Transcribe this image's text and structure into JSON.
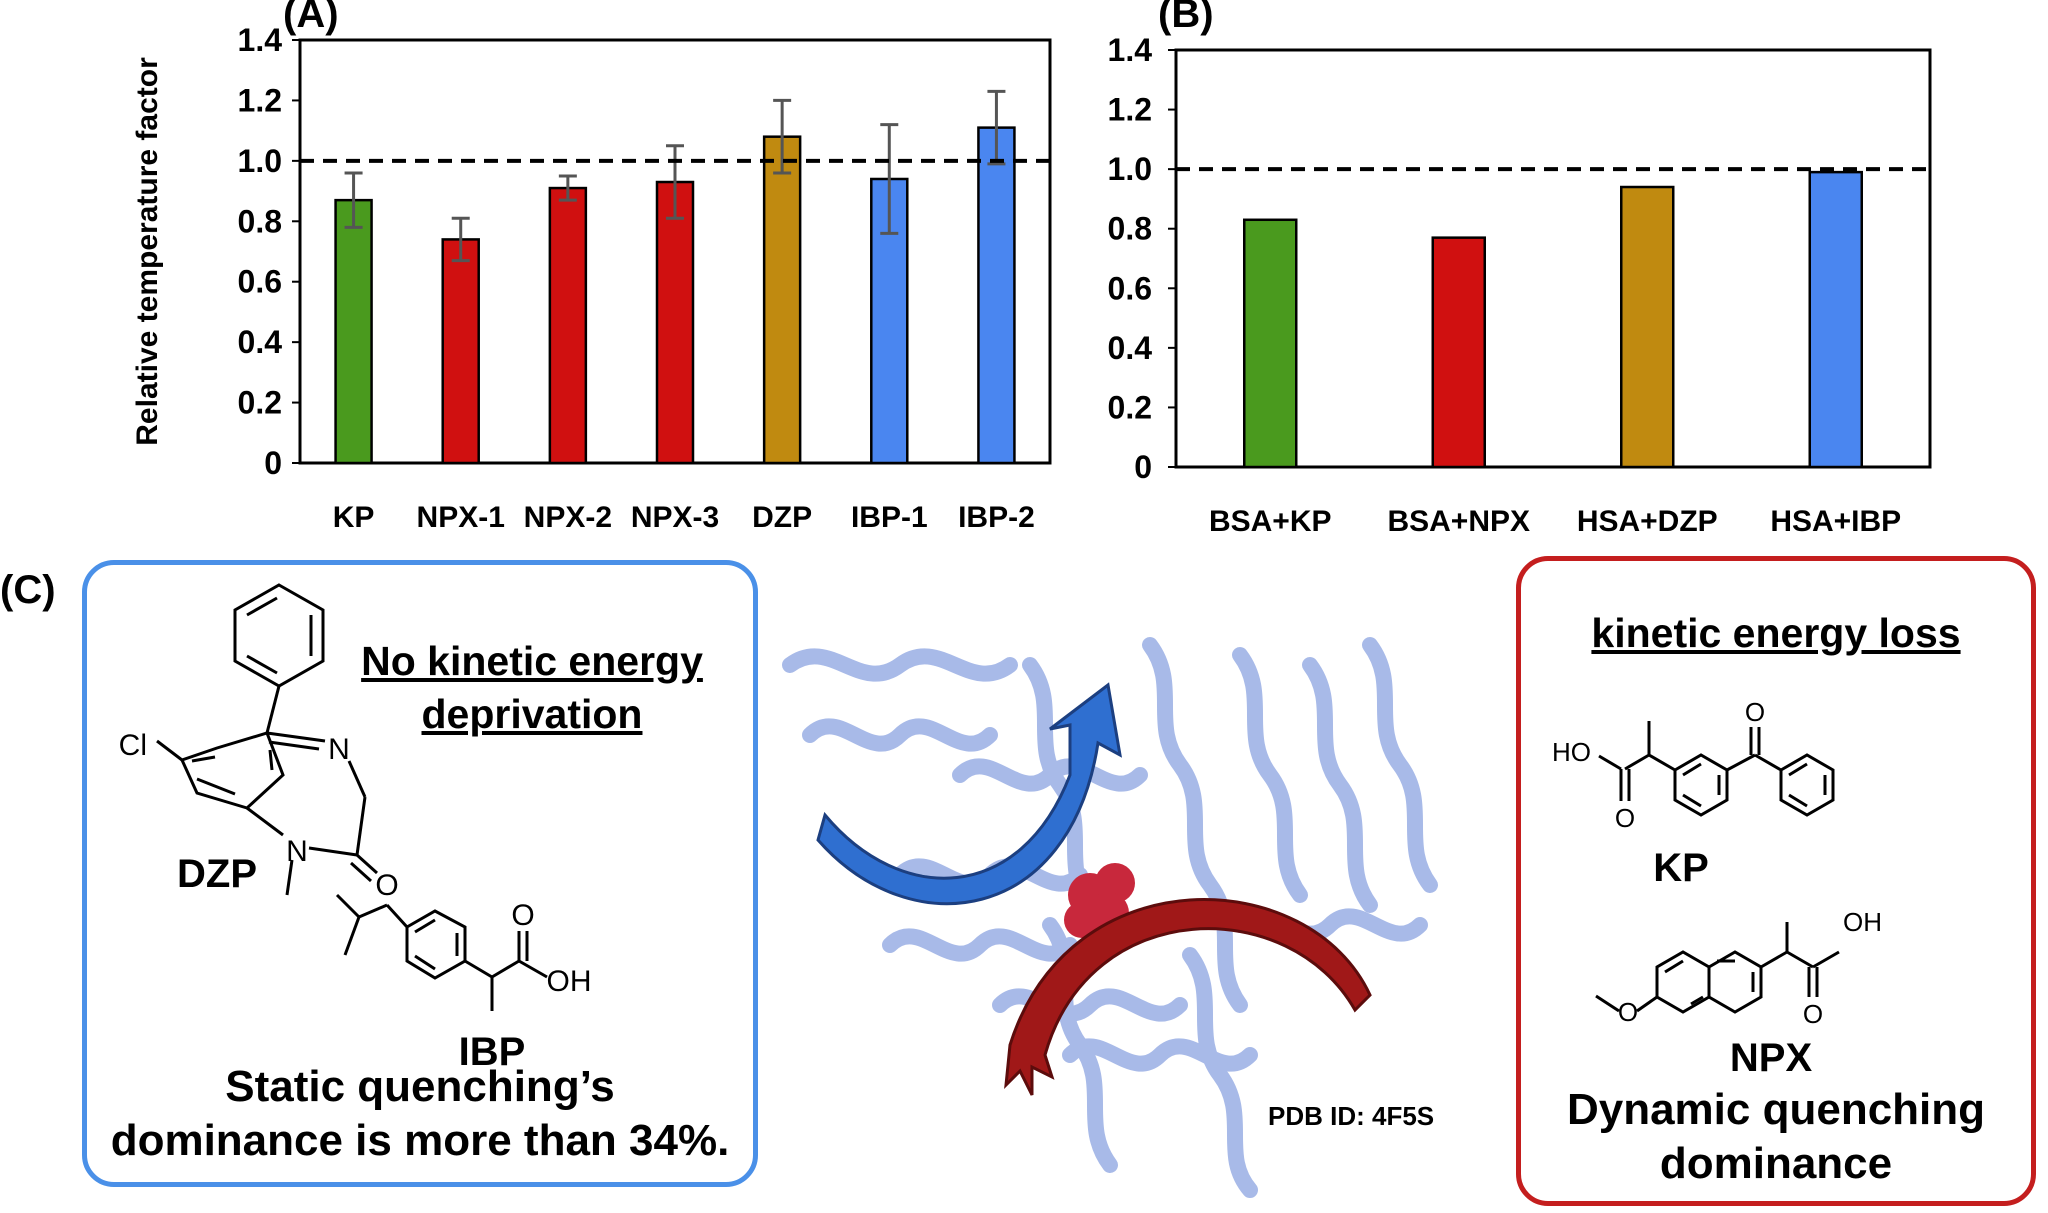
{
  "panels": {
    "a_letter": "(A)",
    "b_letter": "(B)",
    "c_letter": "(C)"
  },
  "chart_data": [
    {
      "type": "bar",
      "panel": "(A)",
      "ylabel": "Relative temperature factor",
      "ylim": [
        0,
        1.4
      ],
      "yticks": [
        "0",
        "0.2",
        "0.4",
        "0.6",
        "0.8",
        "1.0",
        "1.2",
        "1.4"
      ],
      "reference_line": 1.0,
      "categories": [
        "KP",
        "NPX-1",
        "NPX-2",
        "NPX-3",
        "DZP",
        "IBP-1",
        "IBP-2"
      ],
      "values": [
        0.87,
        0.74,
        0.91,
        0.93,
        1.08,
        0.94,
        1.11
      ],
      "errors": [
        0.09,
        0.07,
        0.04,
        0.12,
        0.12,
        0.18,
        0.12
      ],
      "colors": [
        "#4a9a1e",
        "#d01010",
        "#d01010",
        "#d01010",
        "#c08a10",
        "#4a86f0",
        "#4a86f0"
      ],
      "grid": false
    },
    {
      "type": "bar",
      "panel": "(B)",
      "ylim": [
        0,
        1.4
      ],
      "yticks": [
        "0",
        "0.2",
        "0.4",
        "0.6",
        "0.8",
        "1.0",
        "1.2",
        "1.4"
      ],
      "reference_line": 1.0,
      "categories": [
        "BSA+KP",
        "BSA+NPX",
        "HSA+DZP",
        "HSA+IBP"
      ],
      "values": [
        0.83,
        0.77,
        0.94,
        0.99
      ],
      "colors": [
        "#4a9a1e",
        "#d01010",
        "#c08a10",
        "#4a86f0"
      ],
      "grid": false
    }
  ],
  "left_box": {
    "border_color": "#4a90e8",
    "heading_line1": "No kinetic energy",
    "heading_line2": "deprivation",
    "cl_atom": "Cl",
    "n_atom": "N",
    "o_atom": "O",
    "oh_group": "OH",
    "dzp_label": "DZP",
    "ibp_label": "IBP",
    "footer_line1": "Static quenching’s",
    "footer_line2": "dominance is more than 34%."
  },
  "center": {
    "pdb_label": "PDB ID: 4F5S",
    "protein_color": "#9fb3e6",
    "ligand_color": "#c8283c",
    "arrow_blue": "#2f6fd0",
    "arrow_red": "#a01818"
  },
  "right_box": {
    "border_color": "#c41e1e",
    "heading": "kinetic energy loss",
    "ho_group": "HO",
    "oh_group": "OH",
    "o_atom": "O",
    "kp_label": "KP",
    "npx_label": "NPX",
    "footer_line1": "Dynamic quenching",
    "footer_line2": "dominance"
  }
}
